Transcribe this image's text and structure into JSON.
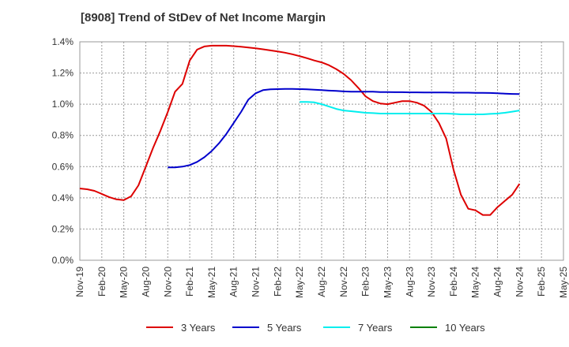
{
  "chart_data": {
    "type": "line",
    "title": "[8908]  Trend of StDev of Net Income Margin",
    "xlabel": "",
    "ylabel": "",
    "ylim": [
      0,
      1.4
    ],
    "ytick_values": [
      0,
      0.2,
      0.4,
      0.6,
      0.8,
      1.0,
      1.2,
      1.4
    ],
    "ytick_labels": [
      "0.0%",
      "0.2%",
      "0.4%",
      "0.6%",
      "0.8%",
      "1.0%",
      "1.2%",
      "1.4%"
    ],
    "x_categories": [
      "Nov-19",
      "Feb-20",
      "May-20",
      "Aug-20",
      "Nov-20",
      "Feb-21",
      "May-21",
      "Aug-21",
      "Nov-21",
      "Feb-22",
      "May-22",
      "Aug-22",
      "Nov-22",
      "Feb-23",
      "May-23",
      "Aug-23",
      "Nov-23",
      "Feb-24",
      "May-24",
      "Aug-24",
      "Nov-24",
      "Feb-25",
      "May-25"
    ],
    "x_months_from_start": [
      0,
      3,
      6,
      9,
      12,
      15,
      18,
      21,
      24,
      27,
      30,
      33,
      36,
      39,
      42,
      45,
      48,
      51,
      54,
      57,
      60,
      63,
      66
    ],
    "grid": true,
    "legend_position": "bottom",
    "series": [
      {
        "name": "3 Years",
        "color": "#dd0000",
        "x": [
          "Nov-19",
          "Dec-19",
          "Jan-20",
          "Feb-20",
          "Mar-20",
          "Apr-20",
          "May-20",
          "Jun-20",
          "Jul-20",
          "Aug-20",
          "Sep-20",
          "Oct-20",
          "Nov-20",
          "Dec-20",
          "Jan-21",
          "Feb-21",
          "Mar-21",
          "Apr-21",
          "May-21",
          "Jun-21",
          "Jul-21",
          "Aug-21",
          "Sep-21",
          "Oct-21",
          "Nov-21",
          "Dec-21",
          "Jan-22",
          "Feb-22",
          "Mar-22",
          "Apr-22",
          "May-22",
          "Jun-22",
          "Jul-22",
          "Aug-22",
          "Sep-22",
          "Oct-22",
          "Nov-22",
          "Dec-22",
          "Jan-23",
          "Feb-23",
          "Mar-23",
          "Apr-23",
          "May-23",
          "Jun-23",
          "Jul-23",
          "Aug-23",
          "Sep-23",
          "Oct-23",
          "Nov-23",
          "Dec-23",
          "Jan-24",
          "Feb-24",
          "Mar-24",
          "Apr-24",
          "May-24",
          "Jun-24",
          "Jul-24",
          "Aug-24",
          "Sep-24",
          "Oct-24",
          "Nov-24"
        ],
        "values": [
          0.46,
          0.455,
          0.445,
          0.425,
          0.405,
          0.39,
          0.385,
          0.41,
          0.48,
          0.6,
          0.72,
          0.83,
          0.95,
          1.08,
          1.13,
          1.28,
          1.35,
          1.37,
          1.375,
          1.375,
          1.375,
          1.372,
          1.368,
          1.363,
          1.358,
          1.352,
          1.345,
          1.338,
          1.33,
          1.32,
          1.308,
          1.295,
          1.28,
          1.268,
          1.25,
          1.225,
          1.195,
          1.155,
          1.105,
          1.05,
          1.02,
          1.005,
          1.0,
          1.01,
          1.02,
          1.02,
          1.01,
          0.99,
          0.95,
          0.88,
          0.78,
          0.58,
          0.42,
          0.33,
          0.32,
          0.29,
          0.29,
          0.34,
          0.38,
          0.42,
          0.49
        ]
      },
      {
        "name": "5 Years",
        "color": "#0000cc",
        "x": [
          "Nov-20",
          "Dec-20",
          "Jan-21",
          "Feb-21",
          "Mar-21",
          "Apr-21",
          "May-21",
          "Jun-21",
          "Jul-21",
          "Aug-21",
          "Sep-21",
          "Oct-21",
          "Nov-21",
          "Dec-21",
          "Jan-22",
          "Feb-22",
          "Mar-22",
          "Apr-22",
          "May-22",
          "Jun-22",
          "Jul-22",
          "Aug-22",
          "Sep-22",
          "Oct-22",
          "Nov-22",
          "Dec-22",
          "Jan-23",
          "Feb-23",
          "Mar-23",
          "Apr-23",
          "May-23",
          "Jun-23",
          "Jul-23",
          "Aug-23",
          "Sep-23",
          "Oct-23",
          "Nov-23",
          "Dec-23",
          "Jan-24",
          "Feb-24",
          "Mar-24",
          "Apr-24",
          "May-24",
          "Jun-24",
          "Jul-24",
          "Aug-24",
          "Sep-24",
          "Oct-24",
          "Nov-24"
        ],
        "values": [
          0.595,
          0.595,
          0.6,
          0.61,
          0.63,
          0.66,
          0.7,
          0.75,
          0.81,
          0.88,
          0.95,
          1.03,
          1.07,
          1.09,
          1.095,
          1.097,
          1.098,
          1.098,
          1.097,
          1.095,
          1.093,
          1.09,
          1.087,
          1.085,
          1.082,
          1.08,
          1.08,
          1.08,
          1.08,
          1.078,
          1.078,
          1.077,
          1.077,
          1.076,
          1.076,
          1.075,
          1.075,
          1.075,
          1.075,
          1.074,
          1.074,
          1.074,
          1.073,
          1.073,
          1.072,
          1.07,
          1.068,
          1.066,
          1.065
        ]
      },
      {
        "name": "7 Years",
        "color": "#00eeee",
        "x": [
          "May-22",
          "Jun-22",
          "Jul-22",
          "Aug-22",
          "Sep-22",
          "Oct-22",
          "Nov-22",
          "Dec-22",
          "Jan-23",
          "Feb-23",
          "Mar-23",
          "Apr-23",
          "May-23",
          "Jun-23",
          "Jul-23",
          "Aug-23",
          "Sep-23",
          "Oct-23",
          "Nov-23",
          "Dec-23",
          "Jan-24",
          "Feb-24",
          "Mar-24",
          "Apr-24",
          "May-24",
          "Jun-24",
          "Jul-24",
          "Aug-24",
          "Sep-24",
          "Oct-24",
          "Nov-24"
        ],
        "values": [
          1.015,
          1.015,
          1.012,
          1.0,
          0.985,
          0.97,
          0.96,
          0.955,
          0.95,
          0.945,
          0.943,
          0.94,
          0.94,
          0.94,
          0.94,
          0.94,
          0.94,
          0.94,
          0.94,
          0.94,
          0.94,
          0.938,
          0.935,
          0.935,
          0.935,
          0.935,
          0.938,
          0.94,
          0.945,
          0.952,
          0.96
        ]
      },
      {
        "name": "10 Years",
        "color": "#008000",
        "x": [],
        "values": []
      }
    ]
  }
}
